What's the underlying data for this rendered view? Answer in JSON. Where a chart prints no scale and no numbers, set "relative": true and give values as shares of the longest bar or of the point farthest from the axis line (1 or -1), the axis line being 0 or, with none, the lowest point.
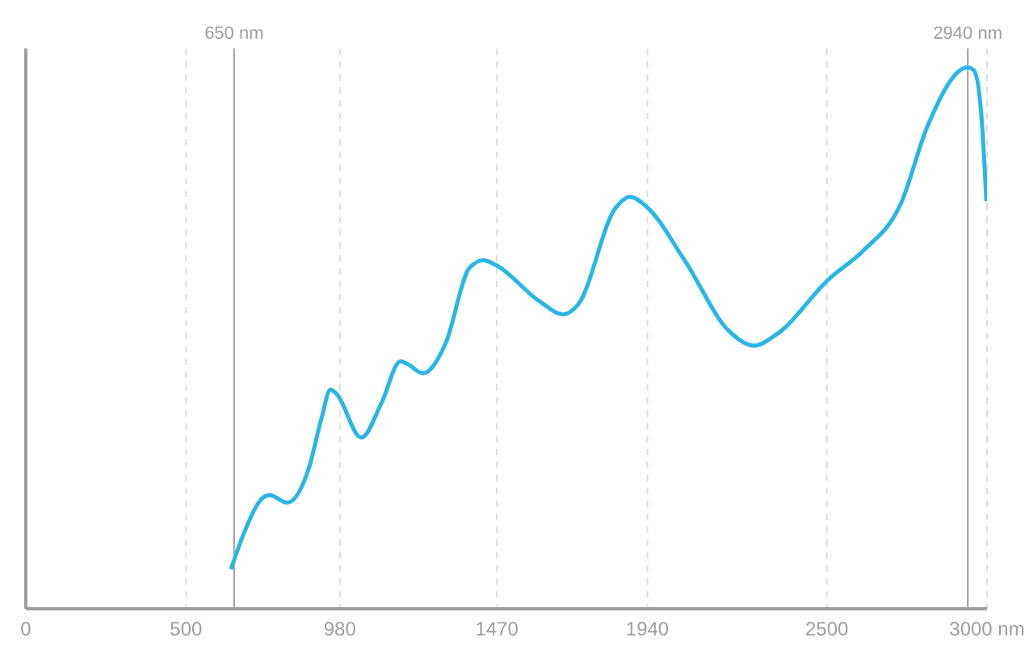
{
  "chart_data": {
    "type": "line",
    "relative": true,
    "x": [
      640,
      683,
      738,
      761,
      816,
      883,
      922,
      951,
      971,
      1047,
      1110,
      1169,
      1189,
      1239,
      1310,
      1384,
      1428,
      1467,
      1601,
      1677,
      1725,
      1839,
      1886,
      1933,
      2058,
      2193,
      2273,
      2341,
      2510,
      2611,
      2733,
      2814,
      2940,
      2960,
      2985,
      2998
    ],
    "series": [
      {
        "color": "#29b6e6",
        "values": [
          0.073,
          0.143,
          0.204,
          0.21,
          0.196,
          0.259,
          0.35,
          0.405,
          0.396,
          0.316,
          0.38,
          0.457,
          0.453,
          0.435,
          0.49,
          0.629,
          0.644,
          0.635,
          0.569,
          0.544,
          0.563,
          0.739,
          0.761,
          0.745,
          0.642,
          0.514,
          0.486,
          0.506,
          0.611,
          0.66,
          0.751,
          0.891,
          1.0,
          0.994,
          0.891,
          0.753
        ]
      }
    ],
    "xlim": [
      0,
      3000
    ],
    "xticks": [
      0,
      500,
      980,
      1470,
      1940,
      2500,
      {
        "value": 3000,
        "label": "3000 nm"
      }
    ],
    "grid": "x",
    "marker": "none",
    "line_style": "solid",
    "ref_lines": [
      {
        "axis": "x",
        "value": 650,
        "label": "650 nm",
        "color": "#9e9e9e"
      },
      {
        "axis": "x",
        "value": 2940,
        "label": "2940 nm",
        "color": "#9e9e9e"
      }
    ]
  }
}
